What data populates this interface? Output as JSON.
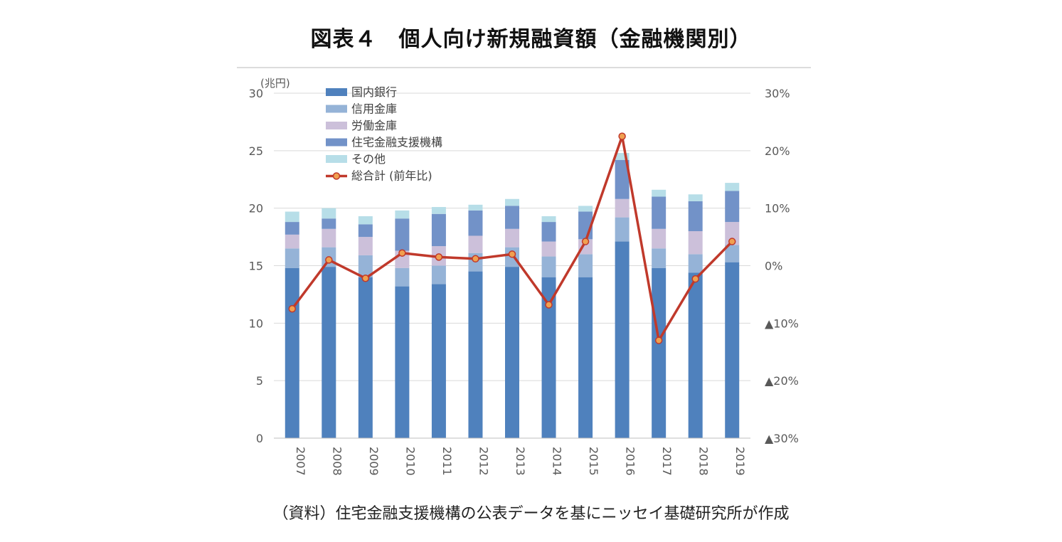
{
  "title": "図表４　個人向け新規融資額（金融機関別）",
  "source": "（資料）住宅金融支援機構の公表データを基にニッセイ基礎研究所が作成",
  "chart_data": {
    "type": "bar",
    "stacked": true,
    "categories": [
      "2007",
      "2008",
      "2009",
      "2010",
      "2011",
      "2012",
      "2013",
      "2014",
      "2015",
      "2016",
      "2017",
      "2018",
      "2019"
    ],
    "y_unit": "(兆円)",
    "ylim": [
      0,
      30
    ],
    "y_ticks": [
      "0",
      "5",
      "10",
      "15",
      "20",
      "25",
      "30"
    ],
    "y2lim": [
      -30,
      30
    ],
    "y2_ticks": [
      "▲30%",
      "▲20%",
      "▲10%",
      "0%",
      "10%",
      "20%",
      "30%"
    ],
    "grid": "horizontal",
    "legend_position": "top-left",
    "series": [
      {
        "name": "国内銀行",
        "color": "#4f81bd",
        "values": [
          14.8,
          14.9,
          14.0,
          13.2,
          13.4,
          14.5,
          14.9,
          14.0,
          14.0,
          17.1,
          14.8,
          14.4,
          15.3
        ]
      },
      {
        "name": "信用金庫",
        "color": "#95b3d7",
        "values": [
          1.7,
          1.7,
          1.9,
          1.6,
          1.6,
          1.6,
          1.7,
          1.8,
          2.0,
          2.1,
          1.7,
          1.6,
          1.5
        ]
      },
      {
        "name": "労働金庫",
        "color": "#ccc0da",
        "values": [
          1.2,
          1.6,
          1.6,
          1.5,
          1.7,
          1.5,
          1.6,
          1.3,
          1.3,
          1.6,
          1.7,
          2.0,
          2.0
        ]
      },
      {
        "name": "住宅金融支援機構",
        "color": "#7292c8",
        "values": [
          1.1,
          0.9,
          1.1,
          2.8,
          2.8,
          2.2,
          2.0,
          1.7,
          2.4,
          3.4,
          2.8,
          2.6,
          2.7
        ]
      },
      {
        "name": "その他",
        "color": "#b7dee8",
        "values": [
          0.9,
          0.9,
          0.7,
          0.7,
          0.6,
          0.5,
          0.6,
          0.5,
          0.5,
          0.6,
          0.6,
          0.6,
          0.7
        ]
      }
    ],
    "line": {
      "name": "総合計 (前年比)",
      "color": "#c0392b",
      "marker_color": "#f0a050",
      "values": [
        -7.5,
        1.0,
        -2.2,
        2.2,
        1.5,
        1.2,
        2.0,
        -6.8,
        4.2,
        22.5,
        -13.0,
        -2.3,
        4.2
      ]
    }
  }
}
